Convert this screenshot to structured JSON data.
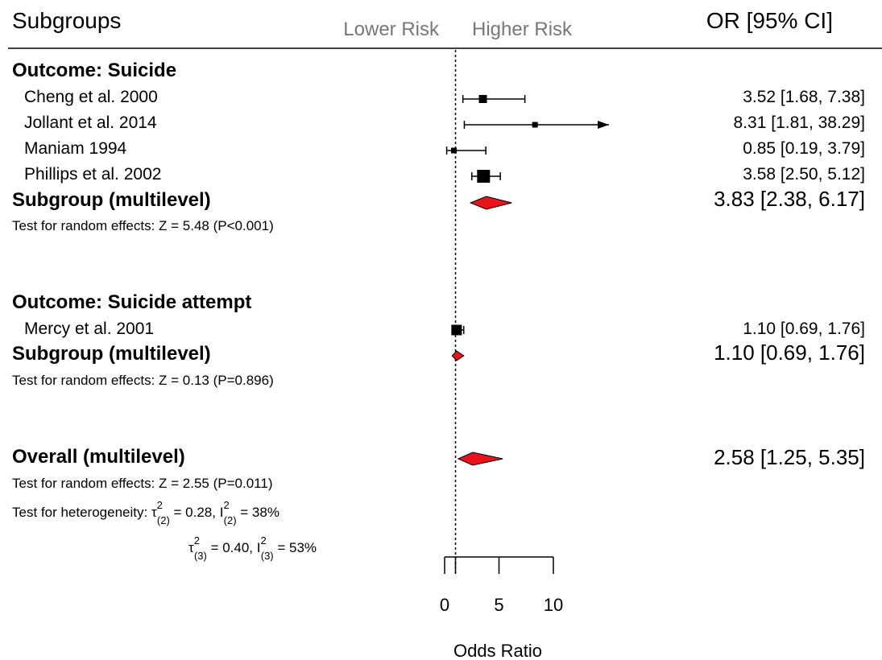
{
  "header": {
    "subgroups_label": "Subgroups",
    "lower_risk": "Lower Risk",
    "higher_risk": "Higher Risk",
    "or_label": "OR [95% CI]"
  },
  "groups": [
    {
      "title": "Outcome: Suicide",
      "studies": [
        {
          "name": "Cheng et al. 2000",
          "ci_text": "3.52 [1.68,  7.38]"
        },
        {
          "name": "Jollant et al. 2014",
          "ci_text": "8.31 [1.81, 38.29]"
        },
        {
          "name": "Maniam 1994",
          "ci_text": "0.85 [0.19,  3.79]"
        },
        {
          "name": "Phillips et al. 2002",
          "ci_text": "3.58 [2.50,  5.12]"
        }
      ],
      "summary_label": "Subgroup (multilevel)",
      "summary_ci_text": "3.83 [2.38, 6.17]",
      "test_text": "Test for random effects: Z = 5.48 (P<0.001)"
    },
    {
      "title": "Outcome: Suicide attempt",
      "studies": [
        {
          "name": "Mercy et al. 2001",
          "ci_text": "1.10 [0.69,  1.76]"
        }
      ],
      "summary_label": "Subgroup (multilevel)",
      "summary_ci_text": "1.10 [0.69, 1.76]",
      "test_text": "Test for random effects: Z = 0.13 (P=0.896)"
    }
  ],
  "overall": {
    "label": "Overall (multilevel)",
    "ci_text": "2.58 [1.25, 5.35]",
    "test_text": "Test for random effects: Z = 2.55 (P=0.011)",
    "het_prefix": "Test for heterogeneity: ",
    "tau_symbol": "τ",
    "i_symbol": "I",
    "sup": "2",
    "sub2": "(2)",
    "sub3": "(3)",
    "tau2_val": " = 0.28, ",
    "i2_val": " = 38%",
    "tau3_val": " = 0.40, ",
    "i3_val": " = 53%"
  },
  "axis": {
    "label": "Odds Ratio",
    "ticks": [
      "0",
      "5",
      "10"
    ]
  },
  "colors": {
    "diamond_fill": "#e8141b",
    "reference_line": "#000000",
    "risk_label": "#777777"
  },
  "chart_data": {
    "type": "forest",
    "xlabel": "Odds Ratio",
    "xlim": [
      0,
      10
    ],
    "ticks": [
      0,
      5,
      10
    ],
    "reference_value": 1,
    "studies": [
      {
        "group": "Outcome: Suicide",
        "name": "Cheng et al. 2000",
        "or": 3.52,
        "lower": 1.68,
        "upper": 7.38,
        "weight": 2
      },
      {
        "group": "Outcome: Suicide",
        "name": "Jollant et al. 2014",
        "or": 8.31,
        "lower": 1.81,
        "upper": 38.29,
        "weight": 1
      },
      {
        "group": "Outcome: Suicide",
        "name": "Maniam 1994",
        "or": 0.85,
        "lower": 0.19,
        "upper": 3.79,
        "weight": 1
      },
      {
        "group": "Outcome: Suicide",
        "name": "Phillips et al. 2002",
        "or": 3.58,
        "lower": 2.5,
        "upper": 5.12,
        "weight": 4
      },
      {
        "group": "Outcome: Suicide attempt",
        "name": "Mercy et al. 2001",
        "or": 1.1,
        "lower": 0.69,
        "upper": 1.76,
        "weight": 3
      }
    ],
    "summaries": [
      {
        "label": "Subgroup (multilevel)",
        "group": "Outcome: Suicide",
        "or": 3.83,
        "lower": 2.38,
        "upper": 6.17
      },
      {
        "label": "Subgroup (multilevel)",
        "group": "Outcome: Suicide attempt",
        "or": 1.1,
        "lower": 0.69,
        "upper": 1.76
      },
      {
        "label": "Overall (multilevel)",
        "group": "Overall",
        "or": 2.58,
        "lower": 1.25,
        "upper": 5.35
      }
    ]
  }
}
